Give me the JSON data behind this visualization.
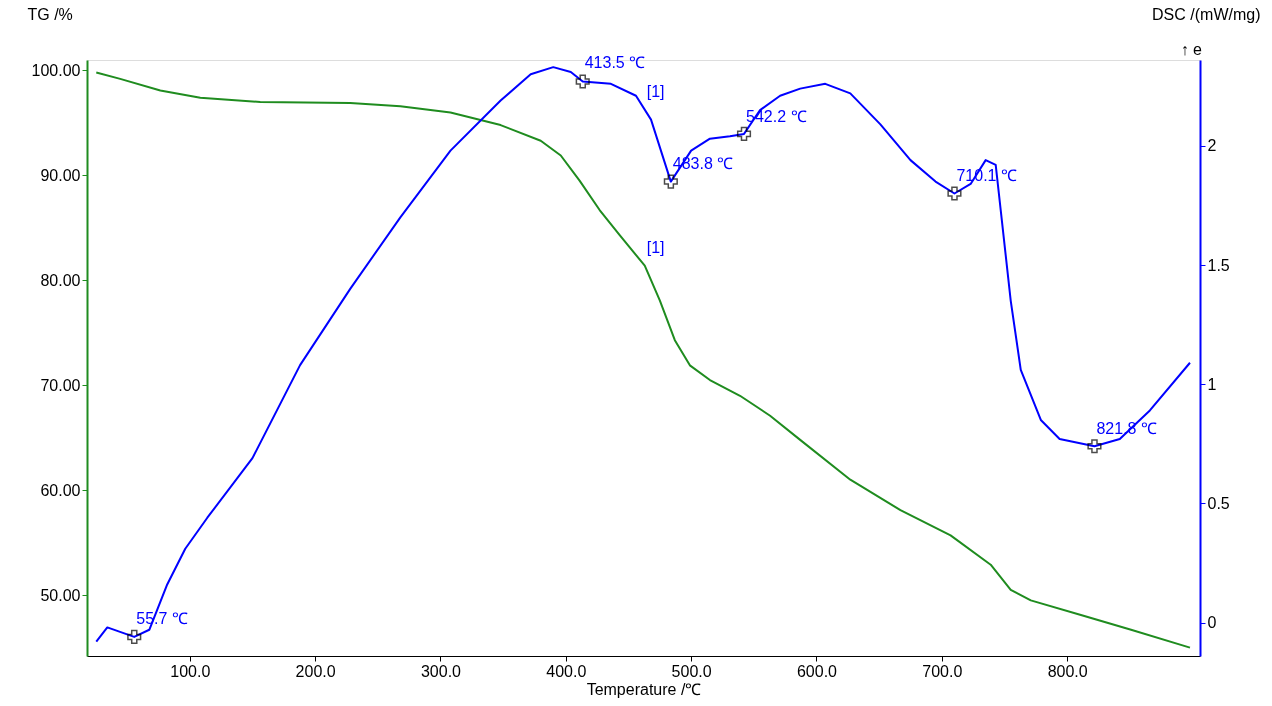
{
  "chart_data": {
    "type": "line",
    "xlabel": "Temperature /℃",
    "ylabel": "TG /%",
    "y2label": "DSC /(mW/mg)",
    "annotations": [
      "↑ e",
      {
        "text": "55.7 ℃",
        "x": 55.7,
        "y": 46.0
      },
      {
        "text": "413.5 ℃",
        "x": 413.5,
        "y": 99.0
      },
      {
        "text": "483.8 ℃",
        "x": 483.8,
        "y": 89.4
      },
      {
        "text": "542.2 ℃",
        "x": 542.2,
        "y": 93.9
      },
      {
        "text": "710.1 ℃",
        "x": 710.1,
        "y": 88.2
      },
      {
        "text": "821.8 ℃",
        "x": 821.8,
        "y": 64.1
      },
      {
        "text": "[1]",
        "x": 463,
        "y": 96.2
      },
      {
        "text": "[1]",
        "x": 463,
        "y": 81.4
      }
    ],
    "xlim": [
      18,
      906
    ],
    "xticks": [
      {
        "value": 100,
        "label": "100.0"
      },
      {
        "value": 200,
        "label": "200.0"
      },
      {
        "value": 300,
        "label": "300.0"
      },
      {
        "value": 400,
        "label": "400.0"
      },
      {
        "value": 500,
        "label": "500.0"
      },
      {
        "value": 600,
        "label": "600.0"
      },
      {
        "value": 700,
        "label": "700.0"
      },
      {
        "value": 800,
        "label": "800.0"
      }
    ],
    "ylim": [
      44.2,
      101
    ],
    "yticks": [
      {
        "value": 50,
        "label": "50.00"
      },
      {
        "value": 60,
        "label": "60.00"
      },
      {
        "value": 70,
        "label": "70.00"
      },
      {
        "value": 80,
        "label": "80.00"
      },
      {
        "value": 90,
        "label": "90.00"
      },
      {
        "value": 100,
        "label": "100.00"
      }
    ],
    "y2lim": [
      -0.14,
      2.36
    ],
    "y2ticks": [
      0,
      0.5,
      1,
      1.5,
      2
    ],
    "grid": false,
    "series": [
      {
        "color": "#1f8c1f",
        "x": [
          25.4,
          44.5,
          76.5,
          108.4,
          156.2,
          228,
          268,
          308,
          348,
          380,
          396,
          411,
          427,
          443,
          463,
          475,
          487,
          499,
          515,
          539,
          563,
          587,
          627,
          667,
          707,
          739,
          755,
          771,
          811,
          851,
          898
        ],
        "values": [
          99.8,
          99.2,
          98.1,
          97.4,
          97.0,
          96.9,
          96.6,
          96.0,
          94.8,
          93.3,
          91.9,
          89.5,
          86.7,
          84.3,
          81.4,
          78.1,
          74.3,
          71.9,
          70.5,
          69.0,
          67.1,
          64.8,
          61.0,
          58.1,
          55.7,
          52.9,
          50.5,
          49.5,
          48.1,
          46.7,
          45.0
        ]
      },
      {
        "axis": "y2",
        "color": "#0000ff",
        "x": [
          25.4,
          34.2,
          55.7,
          67.7,
          82,
          96.4,
          114,
          150,
          188,
          228,
          268,
          308,
          348,
          372,
          390,
          404,
          413.5,
          436,
          456,
          468,
          483.8,
          500,
          515,
          531,
          542.2,
          555,
          571,
          587,
          607,
          627,
          651,
          675,
          695,
          710.1,
          723,
          735,
          743,
          747,
          755,
          763,
          779,
          794,
          821.8,
          842,
          866,
          898
        ],
        "values": [
          -0.08,
          -0.02,
          -0.06,
          -0.03,
          0.16,
          0.31,
          0.44,
          0.69,
          1.08,
          1.4,
          1.7,
          1.98,
          2.19,
          2.3,
          2.33,
          2.31,
          2.27,
          2.26,
          2.21,
          2.11,
          1.85,
          1.98,
          2.03,
          2.04,
          2.05,
          2.15,
          2.21,
          2.24,
          2.26,
          2.22,
          2.09,
          1.94,
          1.85,
          1.8,
          1.84,
          1.94,
          1.92,
          1.73,
          1.35,
          1.06,
          0.85,
          0.77,
          0.74,
          0.77,
          0.89,
          1.09
        ]
      },
      {
        "type": "scatter",
        "axis": "y2",
        "color": "#000000",
        "marker": "cross",
        "x": [
          55.7,
          413.5,
          483.8,
          542.2,
          710.1,
          821.8
        ],
        "values": [
          -0.06,
          2.27,
          1.85,
          2.05,
          1.8,
          0.74
        ]
      }
    ]
  }
}
